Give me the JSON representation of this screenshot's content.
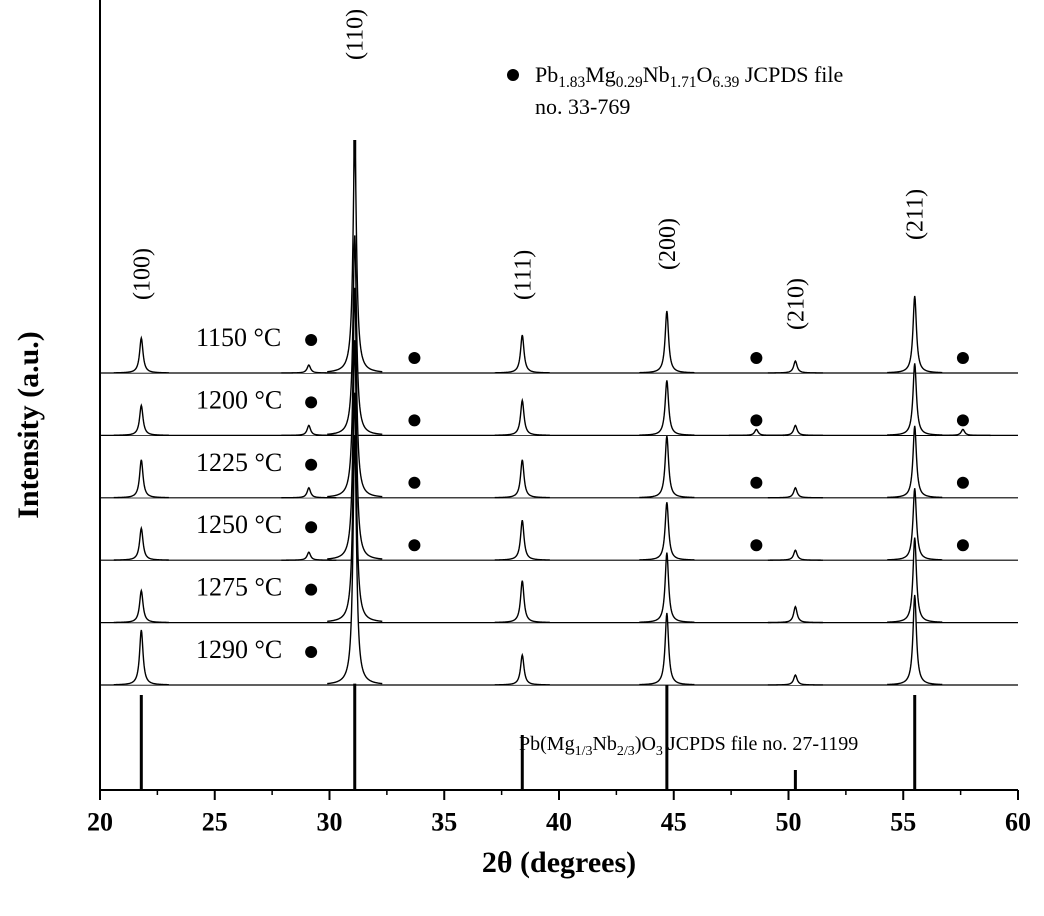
{
  "chart_data": {
    "type": "xrd-stack",
    "x_label": "2θ (degrees)",
    "y_label": "Intensity (a.u.)",
    "xlim": [
      20,
      60
    ],
    "xticks": [
      20,
      25,
      30,
      35,
      40,
      45,
      50,
      55,
      60
    ],
    "color": "#000000",
    "series": [
      {
        "name": "1150 °C",
        "x": [
          21.8,
          29.1,
          31.1,
          38.4,
          44.7,
          50.3,
          55.5
        ],
        "values": [
          35,
          8,
          233,
          38,
          62,
          12,
          77
        ],
        "markers": [
          29.2,
          33.7,
          48.6,
          57.6
        ]
      },
      {
        "name": "1200 °C",
        "x": [
          21.8,
          29.1,
          31.1,
          38.4,
          44.7,
          48.6,
          50.3,
          55.5,
          57.6
        ],
        "values": [
          30,
          10,
          200,
          35,
          55,
          6,
          10,
          72,
          6
        ],
        "markers": [
          29.2,
          33.7,
          48.6,
          57.6
        ]
      },
      {
        "name": "1225 °C",
        "x": [
          21.8,
          29.1,
          31.1,
          38.4,
          44.7,
          50.3,
          55.5
        ],
        "values": [
          38,
          10,
          210,
          38,
          62,
          10,
          72
        ],
        "markers": [
          29.2,
          33.7,
          48.6,
          57.6
        ]
      },
      {
        "name": "1250 °C",
        "x": [
          21.8,
          29.1,
          31.1,
          38.4,
          44.7,
          50.3,
          55.5
        ],
        "values": [
          32,
          8,
          220,
          40,
          58,
          10,
          72
        ],
        "markers": [
          29.2,
          33.7,
          48.6,
          57.6
        ]
      },
      {
        "name": "1275 °C",
        "x": [
          21.8,
          31.1,
          38.4,
          44.7,
          50.3,
          55.5
        ],
        "values": [
          32,
          230,
          42,
          70,
          16,
          85
        ],
        "markers": [
          29.2
        ]
      },
      {
        "name": "1290 °C",
        "x": [
          21.8,
          31.1,
          38.4,
          44.7,
          50.3,
          55.5
        ],
        "values": [
          55,
          250,
          30,
          72,
          10,
          90
        ],
        "markers": [
          29.2
        ]
      }
    ],
    "reference": {
      "x": [
        21.8,
        31.1,
        38.4,
        44.7,
        50.3,
        55.5
      ],
      "values": [
        95,
        650,
        55,
        107,
        20,
        95
      ],
      "label": [
        {
          "text": "Pb(Mg"
        },
        {
          "text": "1/3",
          "sub": true
        },
        {
          "text": "Nb"
        },
        {
          "text": "2/3",
          "sub": true
        },
        {
          "text": ")O"
        },
        {
          "text": "3",
          "sub": true
        },
        {
          "text": " JCPDS file no. 27-1199"
        }
      ]
    },
    "legend": {
      "line1": [
        {
          "text": "Pb"
        },
        {
          "text": "1.83",
          "sub": true
        },
        {
          "text": "Mg"
        },
        {
          "text": "0.29",
          "sub": true
        },
        {
          "text": "Nb"
        },
        {
          "text": "1.71",
          "sub": true
        },
        {
          "text": "O"
        },
        {
          "text": "6.39",
          "sub": true
        },
        {
          "text": " JCPDS file"
        }
      ],
      "line2": "no. 33-769"
    },
    "annotations": [
      {
        "text": "(100)",
        "x": 21.8
      },
      {
        "text": "(110)",
        "x": 31.1
      },
      {
        "text": "(111)",
        "x": 38.4
      },
      {
        "text": "(200)",
        "x": 44.7
      },
      {
        "text": "(210)",
        "x": 50.3
      },
      {
        "text": "(211)",
        "x": 55.5
      }
    ]
  }
}
